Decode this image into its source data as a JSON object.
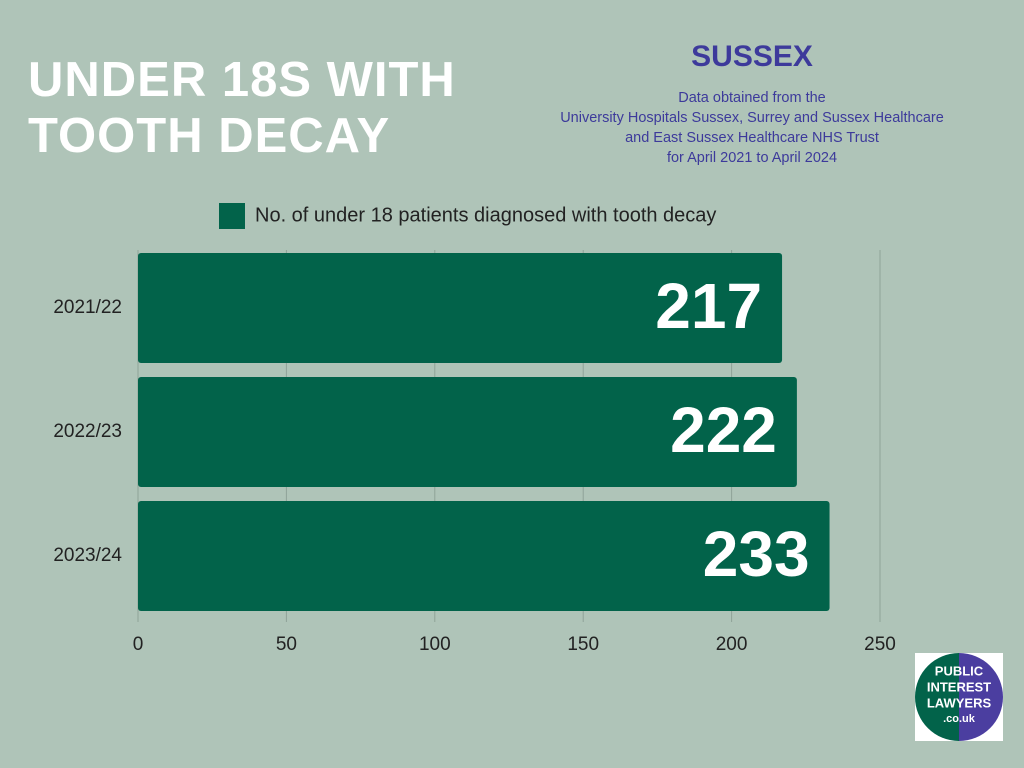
{
  "chart_data": {
    "type": "bar",
    "orientation": "horizontal",
    "title": "UNDER 18S WITH TOOTH DECAY",
    "subtitle": "SUSSEX",
    "annotations": [
      "Data obtained from the",
      "University Hospitals Sussex, Surrey and Sussex Healthcare",
      "and East Sussex Healthcare NHS Trust",
      "for April 2021 to April 2024"
    ],
    "categories": [
      "2021/22",
      "2022/23",
      "2023/24"
    ],
    "series": [
      {
        "name": "No. of under 18 patients diagnosed with tooth decay",
        "color": "#02634a",
        "values": [
          217,
          222,
          233
        ]
      }
    ],
    "xlim": [
      0,
      250
    ],
    "xticks": [
      0,
      50,
      100,
      150,
      200,
      250
    ],
    "grid": true
  },
  "logo": {
    "lines": [
      "PUBLIC",
      "INTEREST",
      "LAWYERS",
      ".co.uk"
    ]
  }
}
